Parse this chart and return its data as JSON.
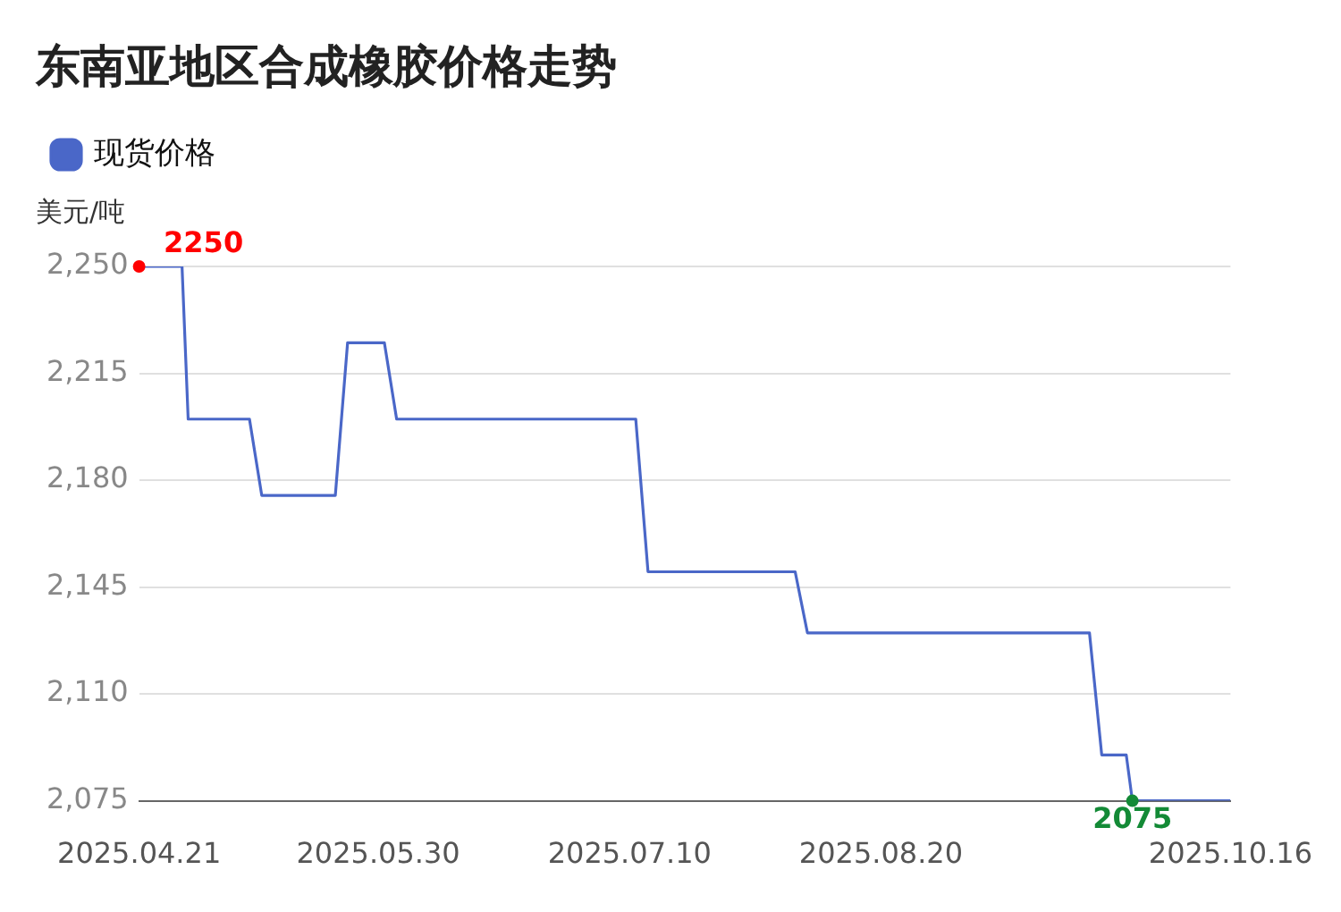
{
  "chart_data": {
    "type": "line",
    "title": "东南亚地区合成橡胶价格走势",
    "ylabel": "美元/吨",
    "series": [
      {
        "name": "现货价格",
        "color": "#4a67c8",
        "x": [
          "2025-04-21",
          "2025-04-28",
          "2025-04-29",
          "2025-05-09",
          "2025-05-11",
          "2025-05-23",
          "2025-05-25",
          "2025-05-31",
          "2025-06-02",
          "2025-07-11",
          "2025-07-13",
          "2025-08-06",
          "2025-08-08",
          "2025-09-23",
          "2025-09-25",
          "2025-09-29",
          "2025-09-30",
          "2025-10-16"
        ],
        "values": [
          2250,
          2250,
          2200,
          2200,
          2175,
          2175,
          2225,
          2225,
          2200,
          2200,
          2150,
          2150,
          2130,
          2130,
          2090,
          2090,
          2075,
          2075
        ]
      }
    ],
    "annotations": [
      {
        "text": "2250",
        "x": "2025-04-21",
        "y": 2250
      },
      {
        "text": "2075",
        "x": "2025-09-30",
        "y": 2075
      }
    ],
    "xlim": [
      "2025-04-21",
      "2025-10-16"
    ],
    "xticks": [
      {
        "value": "2025-04-21",
        "label": "2025.04.21"
      },
      {
        "value": "2025-05-30",
        "label": "2025.05.30"
      },
      {
        "value": "2025-07-10",
        "label": "2025.07.10"
      },
      {
        "value": "2025-08-20",
        "label": "2025.08.20"
      },
      {
        "value": "2025-10-16",
        "label": "2025.10.16"
      }
    ],
    "ylim": [
      2075,
      2250
    ],
    "yticks": [
      {
        "value": 2075,
        "label": "2,075"
      },
      {
        "value": 2110,
        "label": "2,110"
      },
      {
        "value": 2145,
        "label": "2,145"
      },
      {
        "value": 2180,
        "label": "2,180"
      },
      {
        "value": 2215,
        "label": "2,215"
      },
      {
        "value": 2250,
        "label": "2,250"
      }
    ],
    "grid": "y",
    "legend": "top left",
    "marker": "none",
    "line_style": "solid"
  }
}
